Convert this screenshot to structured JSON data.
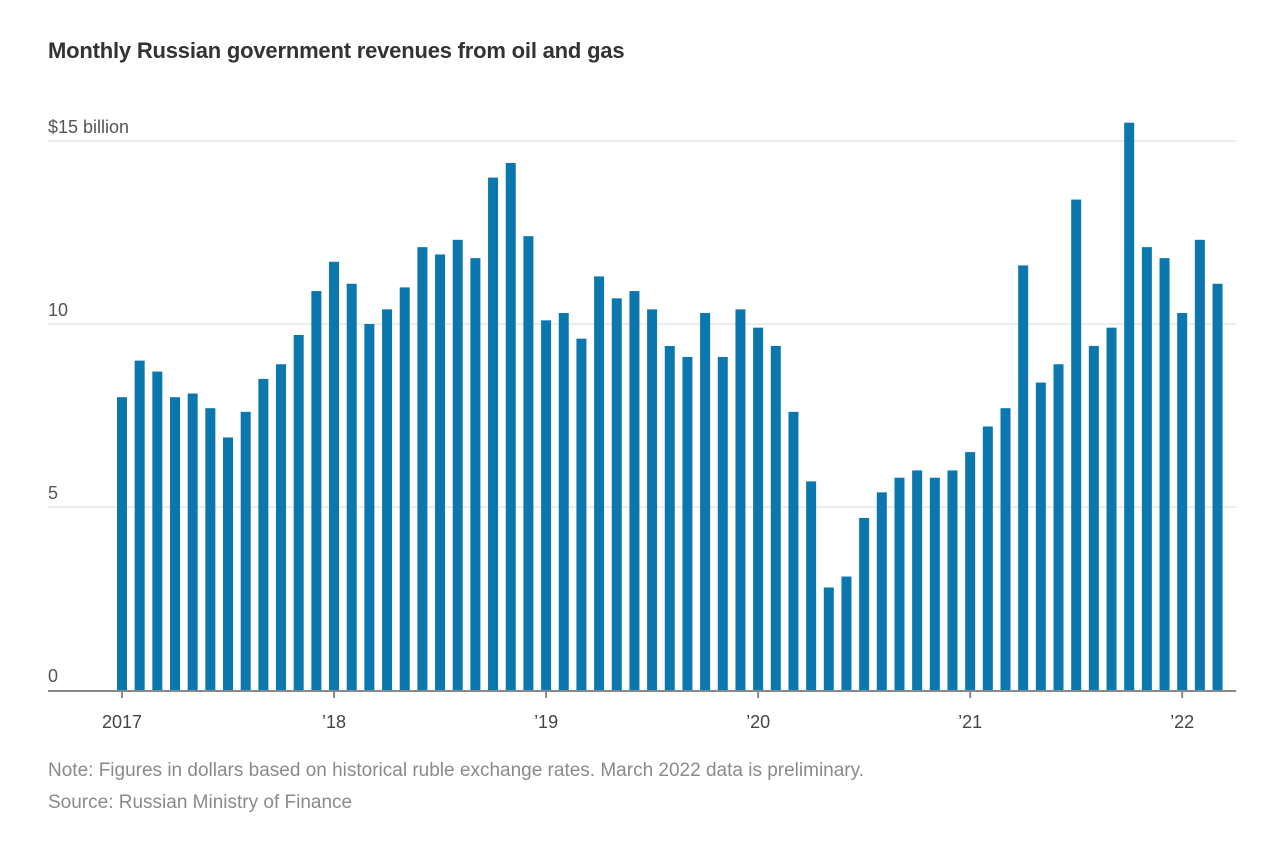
{
  "title": "Monthly Russian government revenues from oil and gas",
  "note": "Note: Figures in dollars based on historical ruble exchange rates. March 2022 data is preliminary.",
  "source": "Source: Russian Ministry of Finance",
  "chart_data": {
    "type": "bar",
    "title": "Monthly Russian government revenues from oil and gas",
    "xlabel": "",
    "ylabel": "",
    "ylim": [
      0,
      15
    ],
    "grid": true,
    "bar_color": "#0a77ae",
    "y_ticks": [
      {
        "value": 0,
        "label": "0"
      },
      {
        "value": 5,
        "label": "5"
      },
      {
        "value": 10,
        "label": "10"
      },
      {
        "value": 15,
        "label": "$15 billion"
      }
    ],
    "x_ticks": [
      {
        "index": 0,
        "label": "2017"
      },
      {
        "index": 12,
        "label": "’18"
      },
      {
        "index": 24,
        "label": "’19"
      },
      {
        "index": 36,
        "label": "’20"
      },
      {
        "index": 48,
        "label": "’21"
      },
      {
        "index": 60,
        "label": "’22"
      }
    ],
    "categories": [
      "2017-01",
      "2017-02",
      "2017-03",
      "2017-04",
      "2017-05",
      "2017-06",
      "2017-07",
      "2017-08",
      "2017-09",
      "2017-10",
      "2017-11",
      "2017-12",
      "2018-01",
      "2018-02",
      "2018-03",
      "2018-04",
      "2018-05",
      "2018-06",
      "2018-07",
      "2018-08",
      "2018-09",
      "2018-10",
      "2018-11",
      "2018-12",
      "2019-01",
      "2019-02",
      "2019-03",
      "2019-04",
      "2019-05",
      "2019-06",
      "2019-07",
      "2019-08",
      "2019-09",
      "2019-10",
      "2019-11",
      "2019-12",
      "2020-01",
      "2020-02",
      "2020-03",
      "2020-04",
      "2020-05",
      "2020-06",
      "2020-07",
      "2020-08",
      "2020-09",
      "2020-10",
      "2020-11",
      "2020-12",
      "2021-01",
      "2021-02",
      "2021-03",
      "2021-04",
      "2021-05",
      "2021-06",
      "2021-07",
      "2021-08",
      "2021-09",
      "2021-10",
      "2021-11",
      "2021-12",
      "2022-01",
      "2022-02",
      "2022-03"
    ],
    "values": [
      8.0,
      9.0,
      8.7,
      8.0,
      8.1,
      7.7,
      6.9,
      7.6,
      8.5,
      8.9,
      9.7,
      10.9,
      11.7,
      11.1,
      10.0,
      10.4,
      11.0,
      12.1,
      11.9,
      12.3,
      11.8,
      14.0,
      14.4,
      12.4,
      10.1,
      10.3,
      9.6,
      11.3,
      10.7,
      10.9,
      10.4,
      9.4,
      9.1,
      10.3,
      9.1,
      10.4,
      9.9,
      9.4,
      7.6,
      5.7,
      2.8,
      3.1,
      4.7,
      5.4,
      5.8,
      6.0,
      5.8,
      6.0,
      6.5,
      7.2,
      7.7,
      11.6,
      8.4,
      8.9,
      13.4,
      9.4,
      9.9,
      15.5,
      12.1,
      11.8,
      10.3,
      12.3,
      11.1
    ]
  }
}
